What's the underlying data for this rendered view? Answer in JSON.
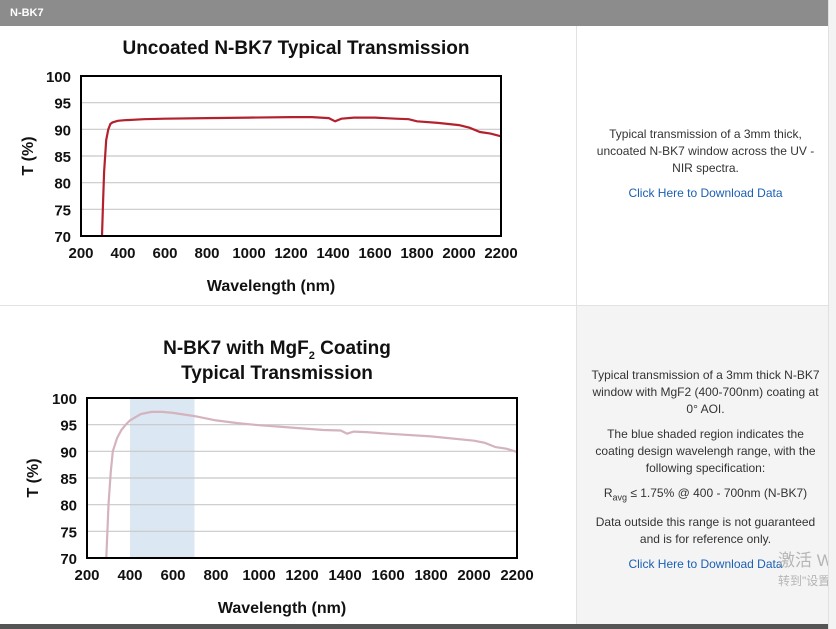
{
  "header": {
    "title": "N-BK7"
  },
  "products": [
    {
      "description": "Typical transmission of a 3mm thick, uncoated N-BK7 window across the UV - NIR spectra.",
      "download_label": "Click Here to Download Data"
    },
    {
      "description": "Typical transmission of a 3mm thick N-BK7 window with MgF2 (400-700nm) coating at 0° AOI.",
      "shade_note": "The blue shaded region indicates the coating design wavelengh range, with the following specification:",
      "spec_prefix": "R",
      "spec_sub": "avg",
      "spec_text": " ≤ 1.75% @ 400 - 700nm (N-BK7)",
      "disclaimer": "Data outside this range is not guaranteed and is for reference only.",
      "download_label": "Click Here to Download Data"
    }
  ],
  "watermark": {
    "line1": "激活 W",
    "line2": "转到\"设置"
  },
  "chart_data": [
    {
      "type": "line",
      "title": "Uncoated N-BK7 Typical Transmission",
      "xlabel": "Wavelength (nm)",
      "ylabel": "T (%)",
      "xlim": [
        200,
        2200
      ],
      "ylim": [
        70,
        100
      ],
      "xticks": [
        200,
        400,
        600,
        800,
        1000,
        1200,
        1400,
        1600,
        1800,
        2000,
        2200
      ],
      "yticks": [
        70,
        75,
        80,
        85,
        90,
        95,
        100
      ],
      "grid": true,
      "color": "#b3212e",
      "series": [
        {
          "x": [
            300,
            305,
            310,
            320,
            330,
            340,
            350,
            375,
            400,
            500,
            600,
            800,
            1000,
            1200,
            1300,
            1380,
            1410,
            1440,
            1500,
            1600,
            1700,
            1760,
            1800,
            1900,
            2000,
            2050,
            2100,
            2150,
            2200
          ],
          "y": [
            70,
            76,
            82,
            88,
            90,
            91,
            91.3,
            91.6,
            91.7,
            91.9,
            92.0,
            92.1,
            92.2,
            92.3,
            92.3,
            92.1,
            91.5,
            92.0,
            92.2,
            92.2,
            92.0,
            91.9,
            91.5,
            91.2,
            90.8,
            90.3,
            89.5,
            89.2,
            88.7
          ]
        }
      ]
    },
    {
      "type": "line",
      "title_parts": [
        "N-BK7 with MgF",
        "2",
        " Coating"
      ],
      "title_line2": "Typical Transmission",
      "xlabel": "Wavelength (nm)",
      "ylabel": "T (%)",
      "xlim": [
        200,
        2200
      ],
      "ylim": [
        70,
        100
      ],
      "xticks": [
        200,
        400,
        600,
        800,
        1000,
        1200,
        1400,
        1600,
        1800,
        2000,
        2200
      ],
      "yticks": [
        70,
        75,
        80,
        85,
        90,
        95,
        100
      ],
      "grid": true,
      "shaded_range": [
        400,
        700
      ],
      "shade_color": "#dbe7f3",
      "color": "#d4b3bd",
      "series": [
        {
          "x": [
            290,
            300,
            310,
            320,
            340,
            360,
            380,
            400,
            450,
            500,
            550,
            600,
            700,
            800,
            900,
            1000,
            1200,
            1300,
            1380,
            1410,
            1440,
            1500,
            1600,
            1800,
            2000,
            2050,
            2100,
            2150,
            2200
          ],
          "y": [
            70,
            80,
            86,
            90,
            92.5,
            94,
            95,
            95.8,
            97,
            97.4,
            97.4,
            97.2,
            96.6,
            95.8,
            95.3,
            94.9,
            94.3,
            94.0,
            93.9,
            93.3,
            93.7,
            93.6,
            93.3,
            92.8,
            92.0,
            91.6,
            90.8,
            90.5,
            89.9
          ]
        }
      ]
    }
  ]
}
